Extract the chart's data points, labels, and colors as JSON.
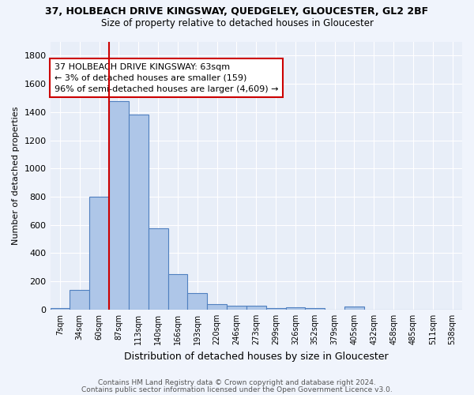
{
  "title": "37, HOLBEACH DRIVE KINGSWAY, QUEDGELEY, GLOUCESTER, GL2 2BF",
  "subtitle": "Size of property relative to detached houses in Gloucester",
  "xlabel": "Distribution of detached houses by size in Gloucester",
  "ylabel": "Number of detached properties",
  "bar_labels": [
    "7sqm",
    "34sqm",
    "60sqm",
    "87sqm",
    "113sqm",
    "140sqm",
    "166sqm",
    "193sqm",
    "220sqm",
    "246sqm",
    "273sqm",
    "299sqm",
    "326sqm",
    "352sqm",
    "379sqm",
    "405sqm",
    "432sqm",
    "458sqm",
    "485sqm",
    "511sqm",
    "538sqm"
  ],
  "bar_values": [
    10,
    140,
    800,
    1480,
    1380,
    575,
    250,
    115,
    40,
    25,
    25,
    10,
    15,
    10,
    0,
    20,
    0,
    0,
    0,
    0,
    0
  ],
  "bar_color": "#aec6e8",
  "bar_edge_color": "#5080c0",
  "vline_color": "#cc0000",
  "vline_x_idx": 2,
  "annotation_text_line1": "37 HOLBEACH DRIVE KINGSWAY: 63sqm",
  "annotation_text_line2": "← 3% of detached houses are smaller (159)",
  "annotation_text_line3": "96% of semi-detached houses are larger (4,609) →",
  "annotation_box_color": "#ffffff",
  "annotation_border_color": "#cc0000",
  "ylim": [
    0,
    1900
  ],
  "yticks": [
    0,
    200,
    400,
    600,
    800,
    1000,
    1200,
    1400,
    1600,
    1800
  ],
  "plot_bg_color": "#e8eef8",
  "fig_bg_color": "#f0f4fc",
  "footer_line1": "Contains HM Land Registry data © Crown copyright and database right 2024.",
  "footer_line2": "Contains public sector information licensed under the Open Government Licence v3.0."
}
